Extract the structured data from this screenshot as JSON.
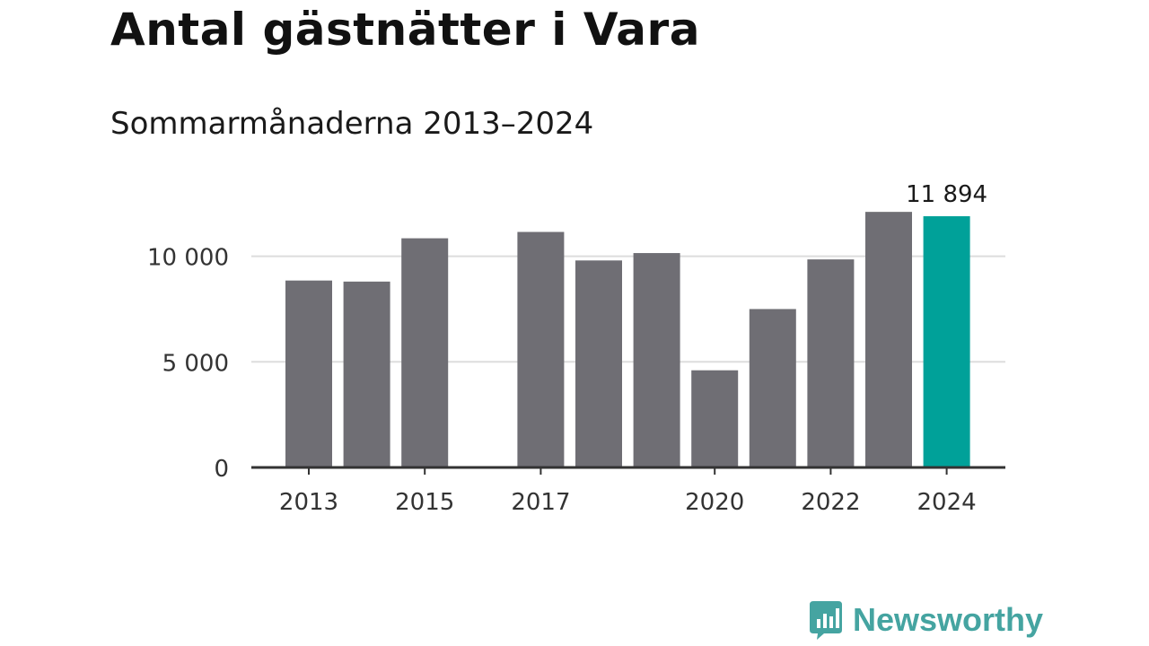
{
  "title": "Antal gästnätter i Vara",
  "subtitle": "Sommarmånaderna 2013–2024",
  "brand": "Newsworthy",
  "colors": {
    "bar": "#6f6e74",
    "highlight": "#00a199",
    "grid": "#dddddd",
    "axis": "#333333",
    "brand": "#45a4a1"
  },
  "chart_data": {
    "type": "bar",
    "categories": [
      "2013",
      "2014",
      "2015",
      "2016",
      "2017",
      "2018",
      "2019",
      "2020",
      "2021",
      "2022",
      "2023",
      "2024"
    ],
    "values": [
      8850,
      8800,
      10850,
      null,
      11150,
      9800,
      10150,
      4600,
      7500,
      9850,
      12100,
      11894
    ],
    "highlight_index": 11,
    "data_labels": [
      {
        "index": 11,
        "text": "11 894"
      }
    ],
    "x_tick_labels": [
      "2013",
      "2015",
      "2017",
      "2020",
      "2022",
      "2024"
    ],
    "y_ticks": [
      {
        "value": 0,
        "label": "0"
      },
      {
        "value": 5000,
        "label": "5 000"
      },
      {
        "value": 10000,
        "label": "10 000"
      }
    ],
    "ylim": [
      0,
      12500
    ],
    "grid": true,
    "xlabel": "",
    "ylabel": ""
  }
}
